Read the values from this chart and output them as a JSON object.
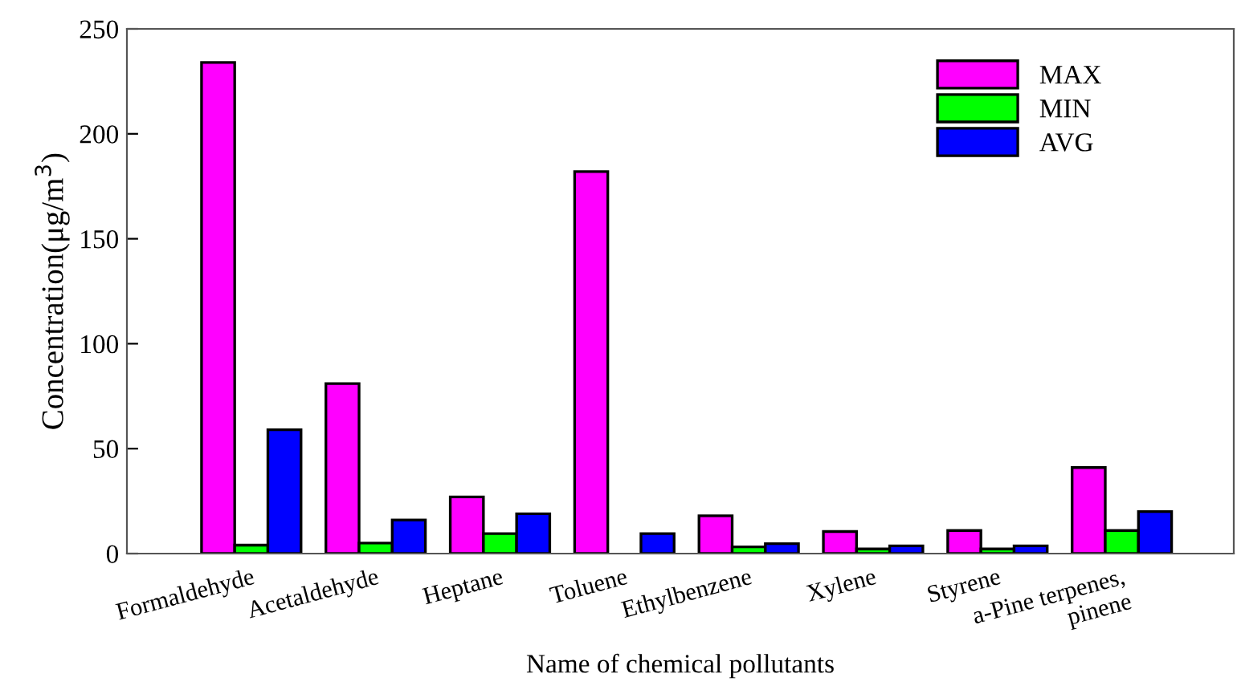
{
  "chart_data": {
    "type": "bar",
    "xlabel": "Name of chemical pollutants",
    "ylabel": "Concentration(μg/m$^{3}$)",
    "categories": [
      "Formaldehyde",
      "Acetaldehyde",
      "Heptane",
      "Toluene",
      "Ethylbenzene",
      "Xylene",
      "Styrene",
      "a-Pine terpenes,\npinene"
    ],
    "series": [
      {
        "name": "MAX",
        "color": "#ff00ff",
        "values": [
          234,
          81,
          27,
          182,
          18,
          10.5,
          11,
          41
        ]
      },
      {
        "name": "MIN",
        "color": "#00ff00",
        "values": [
          4,
          5,
          9.5,
          null,
          3.2,
          2.2,
          2.2,
          11
        ]
      },
      {
        "name": "AVG",
        "color": "#0000ff",
        "values": [
          59,
          16,
          19,
          9.5,
          4.7,
          3.7,
          3.7,
          20
        ]
      }
    ],
    "ylim": [
      0,
      250
    ],
    "yticks": [
      0,
      50,
      100,
      150,
      200,
      250
    ],
    "grid": false,
    "legend": "top right"
  }
}
